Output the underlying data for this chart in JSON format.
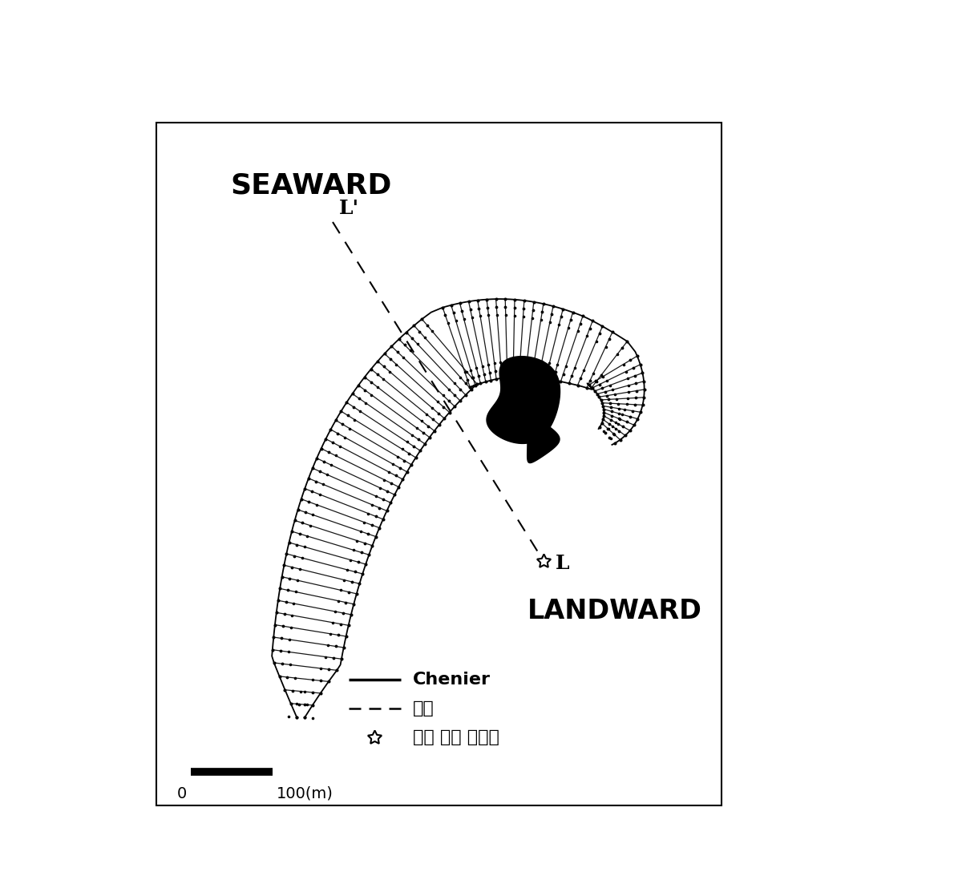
{
  "background_color": "#ffffff",
  "fig_width": 11.9,
  "fig_height": 11.08,
  "dpi": 100,
  "seaward_text": "SEAWARD",
  "landward_text": "LANDWARD",
  "L_prime_label": "L'",
  "L_label": "L",
  "chenier_label": "Chenier",
  "sokson_label": "측선",
  "ref_point_label": "측선 측량 기준점",
  "scale_label": "100(m)",
  "scale_zero": "0"
}
